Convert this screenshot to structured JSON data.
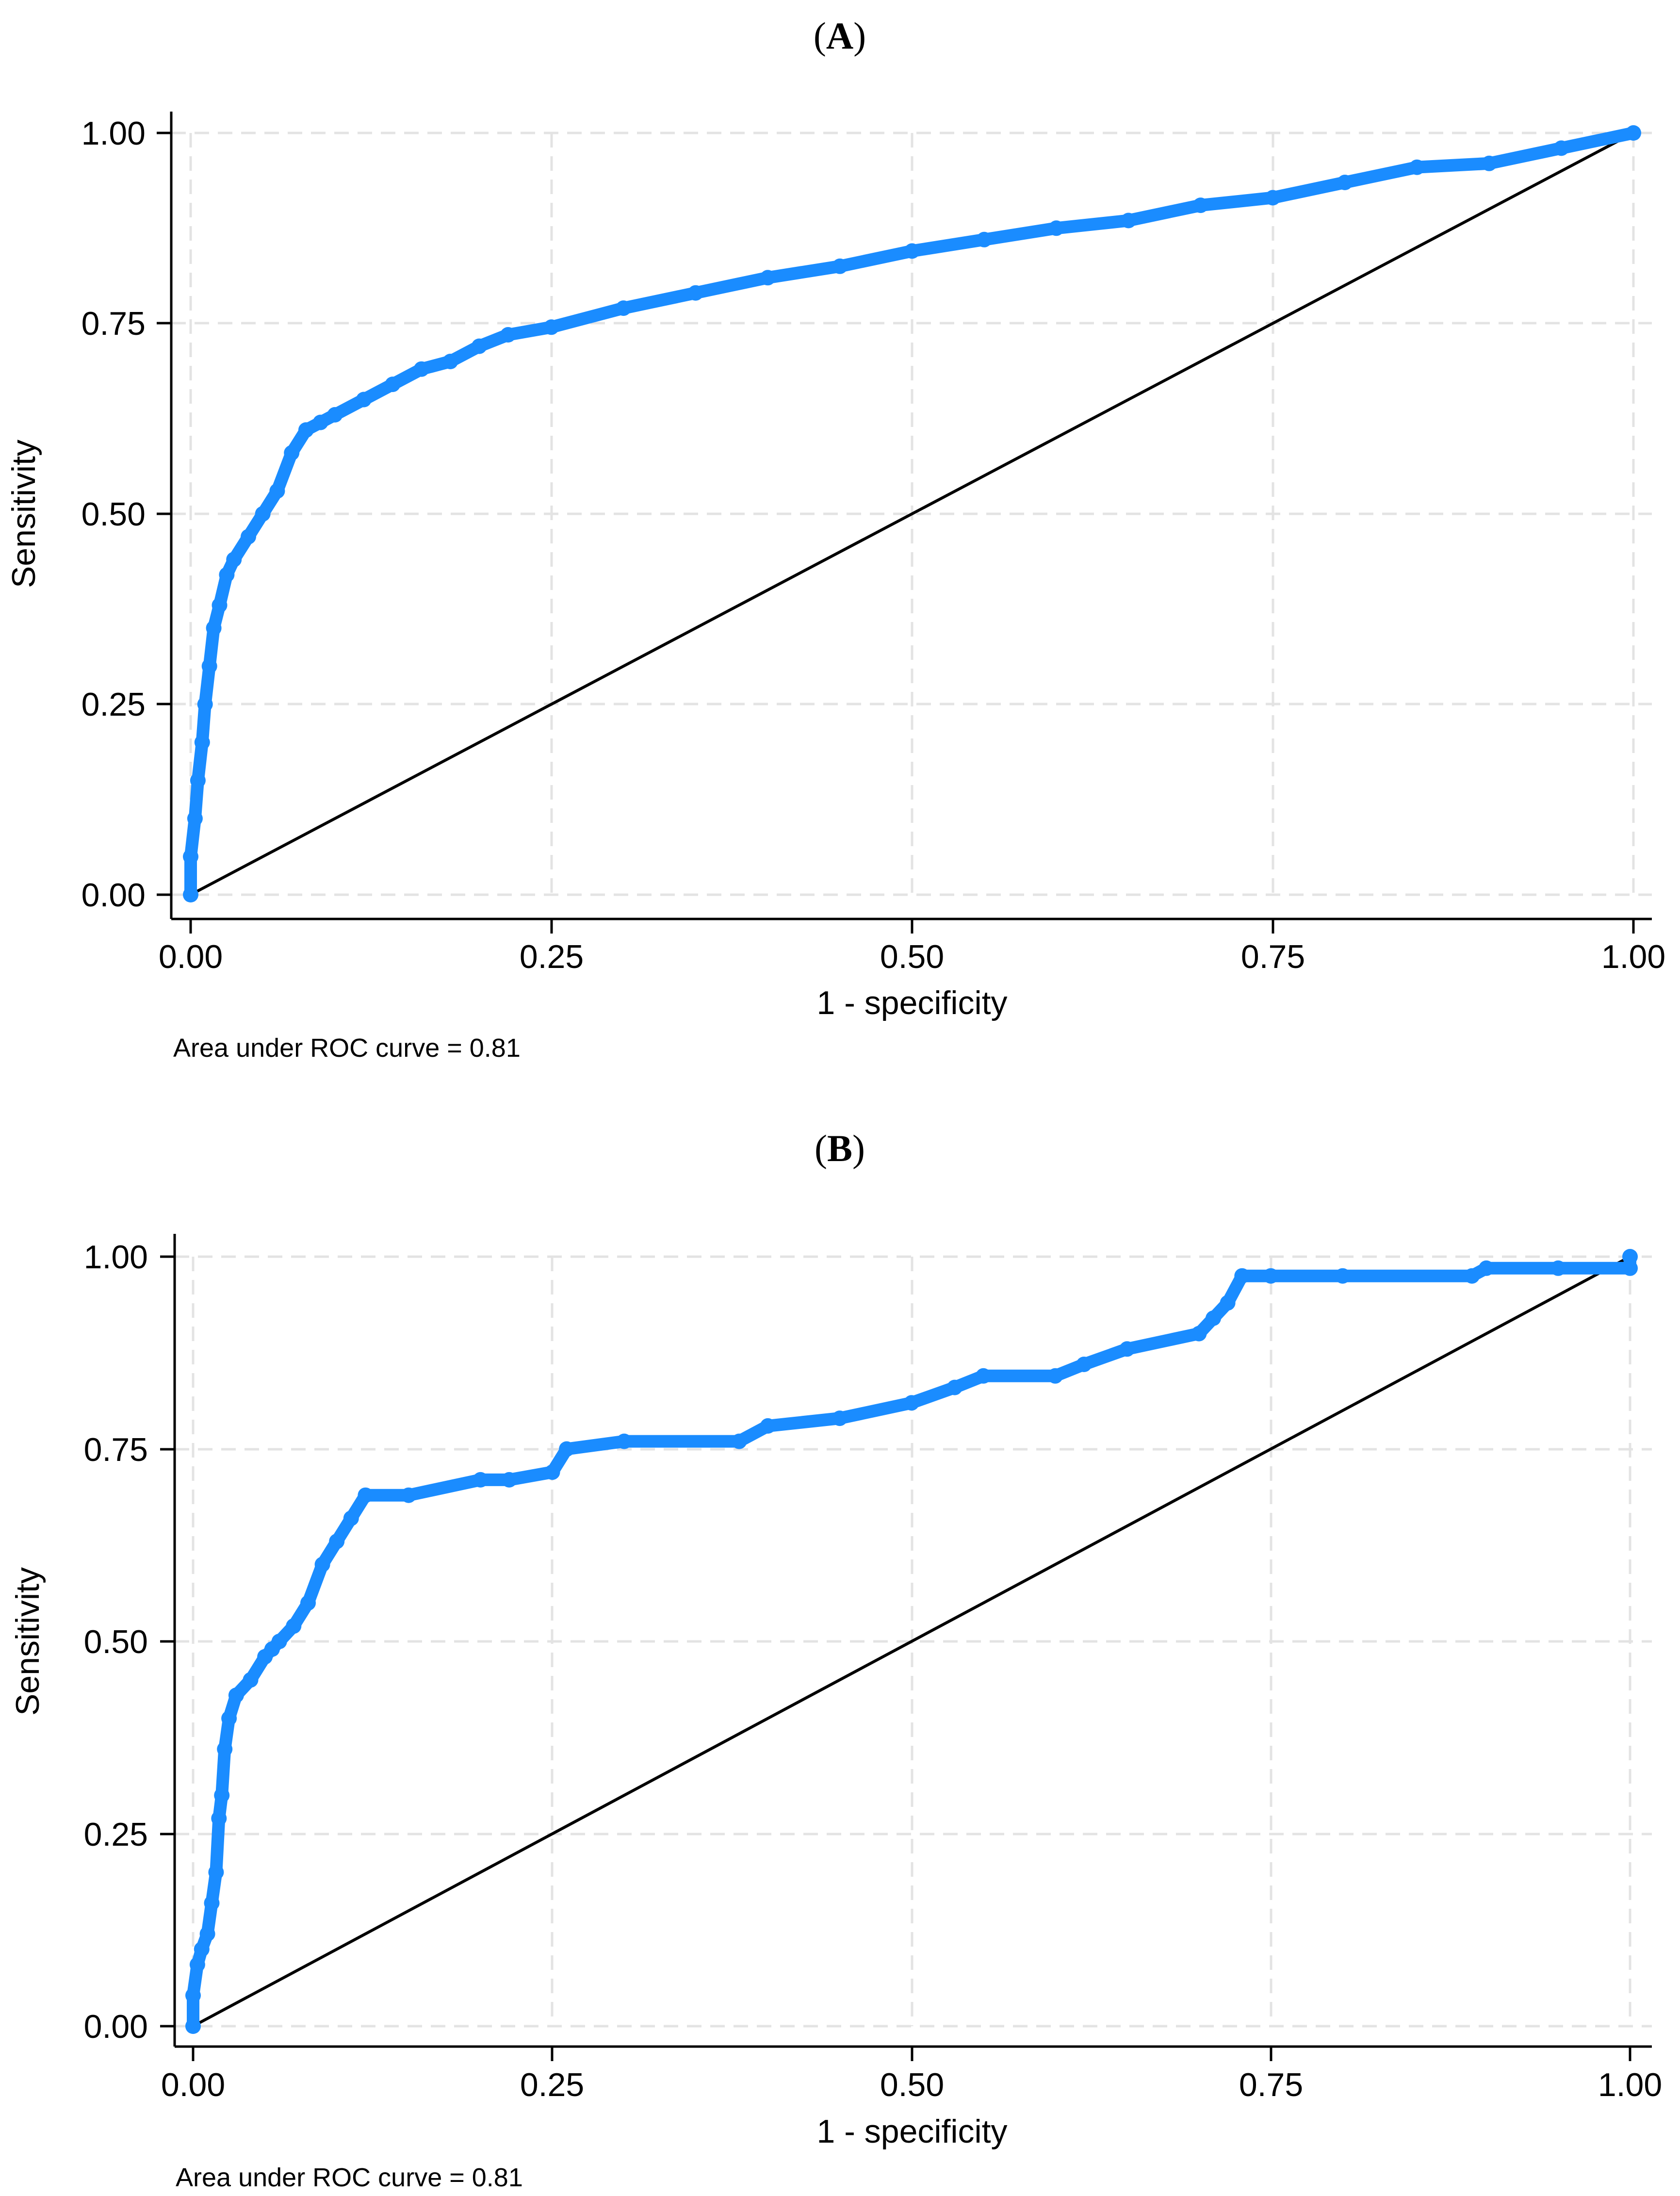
{
  "chart_data": [
    {
      "type": "line",
      "panel_label": "(A)",
      "panel_letter": "A",
      "title": "",
      "xlabel": "1 - specificity",
      "ylabel": "Sensitivity",
      "xlim": [
        0,
        1
      ],
      "ylim": [
        0,
        1
      ],
      "grid": true,
      "xticks": [
        "0.00",
        "0.25",
        "0.50",
        "0.75",
        "1.00"
      ],
      "yticks": [
        "0.00",
        "0.25",
        "0.50",
        "0.75",
        "1.00"
      ],
      "note": "Area under ROC curve = 0.81",
      "series": [
        {
          "name": "ROC curve",
          "color": "#1a8cff",
          "x": [
            0.0,
            0.0,
            0.003,
            0.005,
            0.008,
            0.01,
            0.013,
            0.016,
            0.02,
            0.025,
            0.03,
            0.04,
            0.05,
            0.06,
            0.07,
            0.08,
            0.09,
            0.1,
            0.12,
            0.14,
            0.16,
            0.18,
            0.2,
            0.22,
            0.25,
            0.3,
            0.35,
            0.4,
            0.45,
            0.5,
            0.55,
            0.6,
            0.65,
            0.7,
            0.75,
            0.8,
            0.85,
            0.9,
            0.95,
            1.0
          ],
          "y": [
            0.0,
            0.05,
            0.1,
            0.15,
            0.2,
            0.25,
            0.3,
            0.35,
            0.38,
            0.42,
            0.44,
            0.47,
            0.5,
            0.53,
            0.58,
            0.61,
            0.62,
            0.63,
            0.65,
            0.67,
            0.69,
            0.7,
            0.72,
            0.735,
            0.745,
            0.77,
            0.79,
            0.81,
            0.825,
            0.845,
            0.86,
            0.875,
            0.885,
            0.905,
            0.915,
            0.935,
            0.955,
            0.96,
            0.98,
            1.0
          ]
        },
        {
          "name": "Reference line",
          "color": "#000000",
          "x": [
            0,
            1
          ],
          "y": [
            0,
            1
          ]
        }
      ]
    },
    {
      "type": "line",
      "panel_label": "(B)",
      "panel_letter": "B",
      "title": "",
      "xlabel": "1 - specificity",
      "ylabel": "Sensitivity",
      "xlim": [
        0,
        1
      ],
      "ylim": [
        0,
        1
      ],
      "grid": true,
      "xticks": [
        "0.00",
        "0.25",
        "0.50",
        "0.75",
        "1.00"
      ],
      "yticks": [
        "0.00",
        "0.25",
        "0.50",
        "0.75",
        "1.00"
      ],
      "note": "Area under ROC curve = 0.81",
      "series": [
        {
          "name": "ROC curve",
          "color": "#1a8cff",
          "x": [
            0.0,
            0.0,
            0.003,
            0.006,
            0.01,
            0.013,
            0.016,
            0.018,
            0.02,
            0.022,
            0.025,
            0.03,
            0.04,
            0.05,
            0.055,
            0.06,
            0.07,
            0.08,
            0.09,
            0.1,
            0.11,
            0.12,
            0.15,
            0.2,
            0.22,
            0.25,
            0.26,
            0.3,
            0.38,
            0.4,
            0.45,
            0.5,
            0.53,
            0.55,
            0.6,
            0.62,
            0.65,
            0.7,
            0.71,
            0.72,
            0.73,
            0.75,
            0.8,
            0.89,
            0.9,
            0.95,
            1.0,
            1.0
          ],
          "y": [
            0.0,
            0.04,
            0.08,
            0.1,
            0.12,
            0.16,
            0.2,
            0.27,
            0.3,
            0.36,
            0.4,
            0.43,
            0.45,
            0.48,
            0.49,
            0.5,
            0.52,
            0.55,
            0.6,
            0.63,
            0.66,
            0.69,
            0.69,
            0.71,
            0.71,
            0.72,
            0.75,
            0.76,
            0.76,
            0.78,
            0.79,
            0.81,
            0.83,
            0.845,
            0.845,
            0.86,
            0.88,
            0.9,
            0.92,
            0.94,
            0.975,
            0.975,
            0.975,
            0.975,
            0.985,
            0.985,
            0.985,
            1.0
          ]
        },
        {
          "name": "Reference line",
          "color": "#000000",
          "x": [
            0,
            1
          ],
          "y": [
            0,
            1
          ]
        }
      ]
    }
  ]
}
